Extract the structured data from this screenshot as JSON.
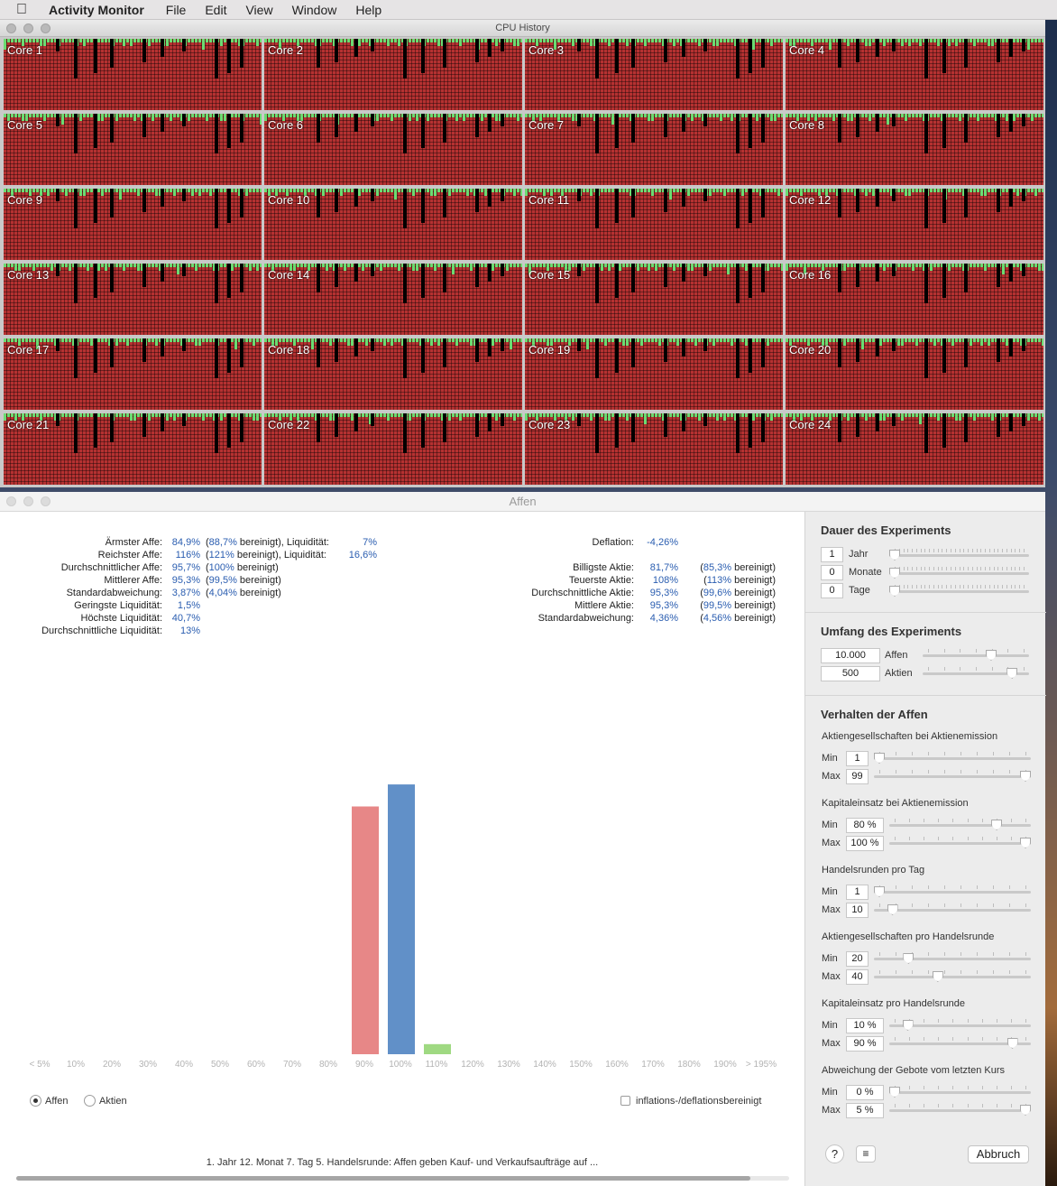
{
  "menubar": {
    "app": "Activity Monitor",
    "items": [
      "File",
      "Edit",
      "View",
      "Window",
      "Help"
    ]
  },
  "cpu_window": {
    "title": "CPU History",
    "cores": [
      "Core 1",
      "Core 2",
      "Core 3",
      "Core 4",
      "Core 5",
      "Core 6",
      "Core 7",
      "Core 8",
      "Core 9",
      "Core 10",
      "Core 11",
      "Core 12",
      "Core 13",
      "Core 14",
      "Core 15",
      "Core 16",
      "Core 17",
      "Core 18",
      "Core 19",
      "Core 20",
      "Core 21",
      "Core 22",
      "Core 23",
      "Core 24"
    ],
    "colors": {
      "user": "#b53131",
      "system": "#6bdc72",
      "idle": "#000000"
    }
  },
  "affen_window": {
    "title": "Affen",
    "left_stats": [
      {
        "label": "Ärmster Affe:",
        "v1": "84,9%",
        "open": "(",
        "v2": "88,7%",
        "mid": " bereinigt), Liquidität:",
        "v3": "7%"
      },
      {
        "label": "Reichster Affe:",
        "v1": "116%",
        "open": "(",
        "v2": "121%",
        "mid": " bereinigt), Liquidität:",
        "v3": "16,6%"
      },
      {
        "label": "Durchschnittlicher Affe:",
        "v1": "95,7%",
        "open": "(",
        "v2": "100%",
        "mid": " bereinigt)",
        "v3": ""
      },
      {
        "label": "Mittlerer Affe:",
        "v1": "95,3%",
        "open": "(",
        "v2": "99,5%",
        "mid": " bereinigt)",
        "v3": ""
      },
      {
        "label": "Standardabweichung:",
        "v1": "3,87%",
        "open": "(",
        "v2": "4,04%",
        "mid": " bereinigt)",
        "v3": ""
      },
      {
        "label": "Geringste Liquidität:",
        "v1": "1,5%",
        "open": "",
        "v2": "",
        "mid": "",
        "v3": ""
      },
      {
        "label": "Höchste Liquidität:",
        "v1": "40,7%",
        "open": "",
        "v2": "",
        "mid": "",
        "v3": ""
      },
      {
        "label": "Durchschnittliche Liquidität:",
        "v1": "13%",
        "open": "",
        "v2": "",
        "mid": "",
        "v3": ""
      }
    ],
    "deflation": {
      "label": "Deflation:",
      "value": "-4,26%"
    },
    "right_stats": [
      {
        "label": "Billigste Aktie:",
        "v1": "81,7%",
        "open": "(",
        "v2": "85,3%",
        "mid": " bereinigt)"
      },
      {
        "label": "Teuerste Aktie:",
        "v1": "108%",
        "open": "(",
        "v2": "113%",
        "mid": " bereinigt)"
      },
      {
        "label": "Durchschnittliche Aktie:",
        "v1": "95,3%",
        "open": "(",
        "v2": "99,6%",
        "mid": " bereinigt)"
      },
      {
        "label": "Mittlere Aktie:",
        "v1": "95,3%",
        "open": "(",
        "v2": "99,5%",
        "mid": " bereinigt)"
      },
      {
        "label": "Standardabweichung:",
        "v1": "4,36%",
        "open": "(",
        "v2": "4,56%",
        "mid": " bereinigt)"
      }
    ],
    "radio_affen": "Affen",
    "radio_aktien": "Aktien",
    "checkbox_label": "inflations-/deflationsbereinigt",
    "status": "1. Jahr  12. Monat  7. Tag  5. Handelsrunde:  Affen geben Kauf- und Verkaufsaufträge auf ...",
    "progress": 0.95
  },
  "chart_data": {
    "type": "bar",
    "categories": [
      "< 5%",
      "10%",
      "20%",
      "30%",
      "40%",
      "50%",
      "60%",
      "70%",
      "80%",
      "90%",
      "100%",
      "110%",
      "120%",
      "130%",
      "140%",
      "150%",
      "160%",
      "170%",
      "180%",
      "190%",
      "> 195%"
    ],
    "series": [
      {
        "color": "#e78787",
        "values": [
          0,
          0,
          0,
          0,
          0,
          0,
          0,
          0,
          0,
          270,
          0,
          0,
          0,
          0,
          0,
          0,
          0,
          0,
          0,
          0,
          0
        ]
      },
      {
        "color": "#6190c8",
        "values": [
          0,
          0,
          0,
          0,
          0,
          0,
          0,
          0,
          0,
          0,
          294,
          0,
          0,
          0,
          0,
          0,
          0,
          0,
          0,
          0,
          0
        ]
      },
      {
        "color": "#9fd982",
        "values": [
          0,
          0,
          0,
          0,
          0,
          0,
          0,
          0,
          0,
          0,
          0,
          11,
          0,
          0,
          0,
          0,
          0,
          0,
          0,
          0,
          0
        ]
      }
    ],
    "ylim": [
      0,
      300
    ]
  },
  "sidebar": {
    "dauer": {
      "title": "Dauer des Experiments",
      "rows": [
        {
          "value": "1",
          "label": "Jahr",
          "pos": 0.0
        },
        {
          "value": "0",
          "label": "Monate",
          "pos": 0.0
        },
        {
          "value": "0",
          "label": "Tage",
          "pos": 0.0
        }
      ]
    },
    "umfang": {
      "title": "Umfang des Experiments",
      "rows": [
        {
          "value": "10.000",
          "label": "Affen",
          "pos": 0.66
        },
        {
          "value": "500",
          "label": "Aktien",
          "pos": 0.88
        }
      ]
    },
    "verhalten": {
      "title": "Verhalten der Affen",
      "groups": [
        {
          "title": "Aktiengesellschaften bei Aktienemission",
          "min": "1",
          "max": "99",
          "min_pos": 0.0,
          "max_pos": 1.0
        },
        {
          "title": "Kapitaleinsatz bei Aktienemission",
          "min": "80 %",
          "max": "100 %",
          "min_pos": 0.78,
          "max_pos": 1.0
        },
        {
          "title": "Handelsrunden pro Tag",
          "min": "1",
          "max": "10",
          "min_pos": 0.0,
          "max_pos": 0.09
        },
        {
          "title": "Aktiengesellschaften pro Handelsrunde",
          "min": "20",
          "max": "40",
          "min_pos": 0.2,
          "max_pos": 0.4
        },
        {
          "title": "Kapitaleinsatz pro Handelsrunde",
          "min": "10 %",
          "max": "90 %",
          "min_pos": 0.1,
          "max_pos": 0.9
        },
        {
          "title": "Abweichung der Gebote vom letzten Kurs",
          "min": "0 %",
          "max": "5 %",
          "min_pos": 0.0,
          "max_pos": 1.0
        }
      ],
      "min_label": "Min",
      "max_label": "Max"
    },
    "help": "?",
    "cancel": "Abbruch"
  }
}
